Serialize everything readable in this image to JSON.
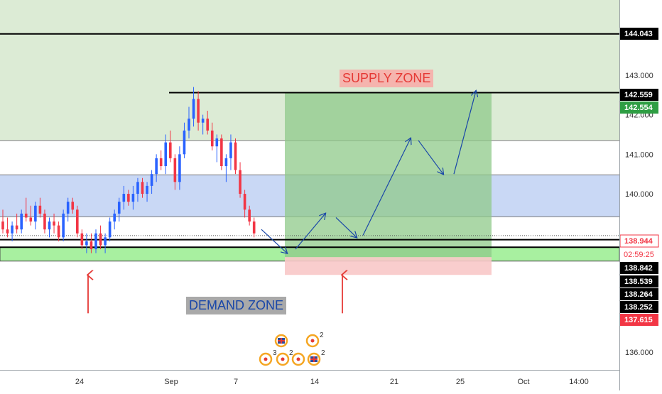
{
  "chart_data": {
    "type": "candlestick",
    "y_axis": {
      "ticks": [
        "143.000",
        "142.000",
        "141.000",
        "140.000",
        "136.000"
      ],
      "tick_values": [
        143,
        142,
        141,
        140,
        136
      ],
      "range": [
        135.55,
        144.9
      ]
    },
    "x_axis": {
      "ticks": [
        "24",
        "Sep",
        "7",
        "14",
        "21",
        "25",
        "Oct",
        "14:00"
      ]
    },
    "price_levels": [
      {
        "value": 144.043,
        "label": "144.043",
        "style": "line",
        "bg": "#000000",
        "fg": "#ffffff"
      },
      {
        "value": 142.559,
        "label": "142.559",
        "style": "line",
        "bg": "#000000",
        "fg": "#ffffff"
      },
      {
        "value": 142.554,
        "label": "142.554",
        "style": "tag",
        "bg": "#2e9e43",
        "fg": "#ffffff"
      },
      {
        "value": 138.944,
        "label": "138.944",
        "style": "tag",
        "bg": "#ffffff",
        "fg": "#f23645",
        "border": "#f23645"
      },
      {
        "value": 138.842,
        "label": "138.842",
        "style": "line",
        "bg": "#000000",
        "fg": "#ffffff"
      },
      {
        "value": 138.539,
        "label": "138.539",
        "style": "tag",
        "bg": "#000000",
        "fg": "#ffffff"
      },
      {
        "value": 138.264,
        "label": "138.264",
        "style": "tag",
        "bg": "#000000",
        "fg": "#ffffff"
      },
      {
        "value": 138.252,
        "label": "138.252",
        "style": "tag",
        "bg": "#000000",
        "fg": "#ffffff"
      },
      {
        "value": 137.615,
        "label": "137.615",
        "style": "tag",
        "bg": "#f23645",
        "fg": "#ffffff"
      }
    ],
    "countdown": {
      "label": "02:59:25",
      "color": "#f23645"
    },
    "zones": {
      "supply": {
        "label": "SUPPLY ZONE",
        "top": 144.9,
        "bottom": 141.35,
        "color": "#dcebd5"
      },
      "resistance_band": {
        "top": 140.48,
        "bottom": 139.42,
        "color": "#c9d8f5"
      },
      "demand": {
        "label": "DEMAND ZONE",
        "top": 138.65,
        "bottom": 138.3,
        "color": "#a8f0a0"
      }
    },
    "position": {
      "entry": 138.4,
      "target": 142.559,
      "stop": 137.95,
      "profit_color": "#8fc98a",
      "loss_color": "#f8c8c8"
    },
    "colors": {
      "up": "#2962ff",
      "down": "#f23645",
      "arrow_red": "#e53935",
      "arrow_blue": "#1a47a8"
    },
    "event_badges": [
      "2",
      "3",
      "2",
      "2"
    ],
    "candles": [
      [
        139.3,
        139.6,
        139.0,
        139.1
      ],
      [
        139.1,
        139.4,
        138.9,
        139.0
      ],
      [
        139.0,
        139.3,
        138.8,
        139.2
      ],
      [
        139.2,
        139.5,
        139.0,
        139.1
      ],
      [
        139.1,
        139.6,
        139.0,
        139.5
      ],
      [
        139.5,
        139.9,
        139.3,
        139.4
      ],
      [
        139.4,
        139.7,
        139.2,
        139.3
      ],
      [
        139.3,
        139.8,
        139.1,
        139.7
      ],
      [
        139.7,
        139.9,
        139.4,
        139.5
      ],
      [
        139.5,
        139.6,
        139.0,
        139.1
      ],
      [
        139.1,
        139.4,
        138.9,
        139.3
      ],
      [
        139.3,
        139.5,
        139.0,
        139.2
      ],
      [
        139.2,
        139.3,
        138.8,
        138.9
      ],
      [
        138.9,
        139.6,
        138.8,
        139.5
      ],
      [
        139.5,
        139.9,
        139.3,
        139.8
      ],
      [
        139.8,
        139.9,
        139.5,
        139.6
      ],
      [
        139.6,
        139.7,
        138.9,
        139.0
      ],
      [
        139.0,
        139.1,
        138.6,
        138.7
      ],
      [
        138.7,
        139.0,
        138.5,
        138.8
      ],
      [
        138.8,
        139.0,
        138.5,
        138.6
      ],
      [
        138.6,
        139.1,
        138.5,
        139.0
      ],
      [
        139.0,
        139.2,
        138.6,
        138.7
      ],
      [
        138.7,
        139.0,
        138.5,
        138.9
      ],
      [
        138.9,
        139.4,
        138.8,
        139.3
      ],
      [
        139.3,
        139.6,
        139.1,
        139.5
      ],
      [
        139.5,
        139.9,
        139.3,
        139.8
      ],
      [
        139.8,
        140.2,
        139.6,
        140.0
      ],
      [
        140.0,
        140.1,
        139.7,
        139.8
      ],
      [
        139.8,
        140.2,
        139.6,
        140.0
      ],
      [
        140.0,
        140.4,
        139.8,
        140.3
      ],
      [
        140.3,
        140.4,
        139.9,
        140.0
      ],
      [
        140.0,
        140.3,
        139.8,
        140.2
      ],
      [
        140.2,
        140.6,
        140.0,
        140.5
      ],
      [
        140.5,
        141.0,
        140.3,
        140.9
      ],
      [
        140.9,
        141.1,
        140.6,
        140.7
      ],
      [
        140.7,
        141.5,
        140.5,
        141.3
      ],
      [
        141.3,
        141.6,
        140.8,
        140.9
      ],
      [
        140.9,
        141.0,
        140.1,
        140.3
      ],
      [
        140.3,
        141.2,
        140.1,
        141.0
      ],
      [
        141.0,
        141.8,
        140.9,
        141.6
      ],
      [
        141.6,
        142.2,
        141.4,
        141.9
      ],
      [
        141.9,
        142.7,
        141.7,
        142.4
      ],
      [
        142.4,
        142.6,
        141.6,
        141.8
      ],
      [
        141.8,
        142.0,
        141.5,
        141.9
      ],
      [
        141.9,
        142.1,
        141.5,
        141.6
      ],
      [
        141.6,
        141.8,
        141.1,
        141.2
      ],
      [
        141.2,
        141.5,
        140.8,
        141.4
      ],
      [
        141.4,
        141.5,
        140.6,
        140.7
      ],
      [
        140.7,
        141.0,
        140.3,
        140.9
      ],
      [
        140.9,
        141.5,
        140.6,
        141.3
      ],
      [
        141.3,
        141.4,
        140.5,
        140.6
      ],
      [
        140.6,
        140.8,
        139.9,
        140.0
      ],
      [
        140.0,
        140.1,
        139.4,
        139.6
      ],
      [
        139.6,
        139.7,
        139.2,
        139.3
      ],
      [
        139.3,
        139.4,
        138.9,
        139.0
      ]
    ]
  }
}
